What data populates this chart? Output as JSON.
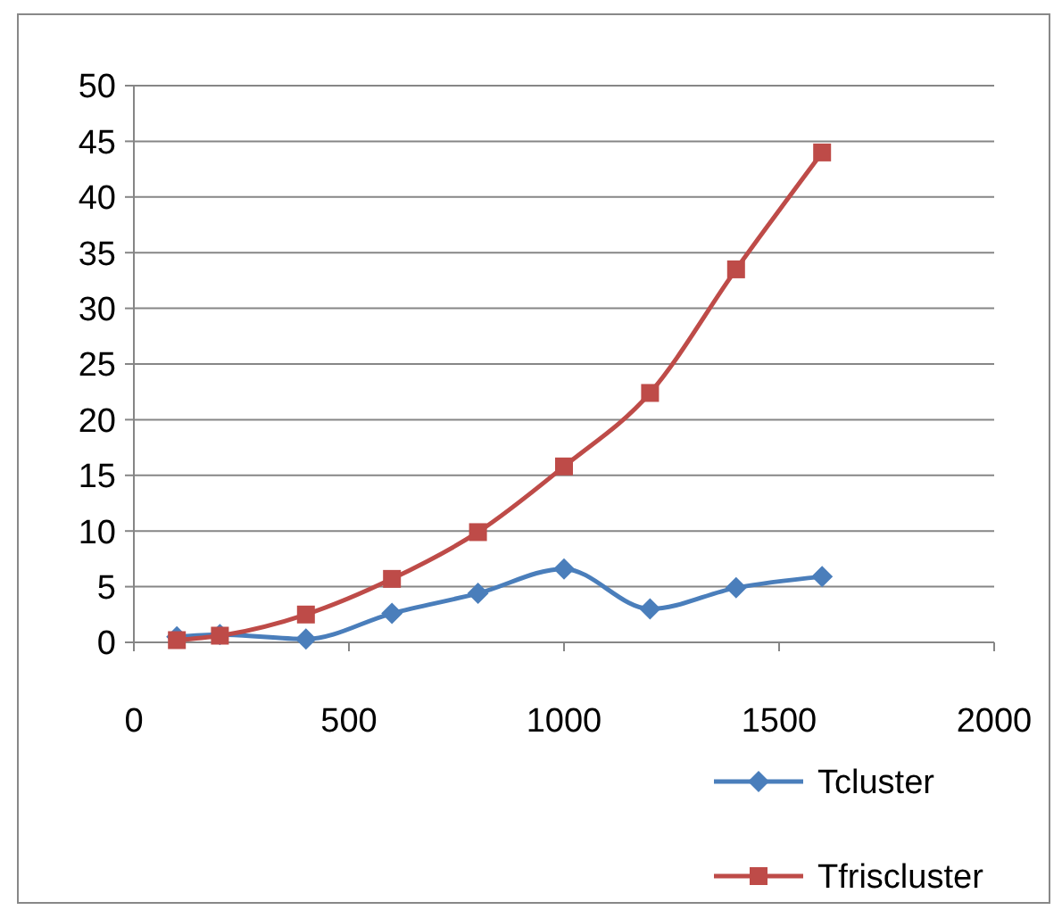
{
  "chart_data": {
    "type": "line",
    "xlim": [
      0,
      2000
    ],
    "xticks": [
      0,
      500,
      1000,
      1500,
      2000
    ],
    "ylim": [
      0,
      50
    ],
    "yticks": [
      0,
      5,
      10,
      15,
      20,
      25,
      30,
      35,
      40,
      45,
      50
    ],
    "grid": "y",
    "legend": "bottom right",
    "line_style": "solid",
    "series": [
      {
        "name": "Tcluster",
        "color": "#4a7ebb",
        "marker": "diamond",
        "x": [
          100,
          200,
          400,
          600,
          800,
          1000,
          1200,
          1400,
          1600
        ],
        "values": [
          0.5,
          0.7,
          0.3,
          2.6,
          4.4,
          6.6,
          3.0,
          4.9,
          5.9
        ]
      },
      {
        "name": "Tfriscluster",
        "color": "#be4b48",
        "marker": "square",
        "x": [
          100,
          200,
          400,
          600,
          800,
          1000,
          1200,
          1400,
          1600
        ],
        "values": [
          0.2,
          0.6,
          2.5,
          5.7,
          9.9,
          15.8,
          22.4,
          33.5,
          44
        ]
      }
    ]
  }
}
